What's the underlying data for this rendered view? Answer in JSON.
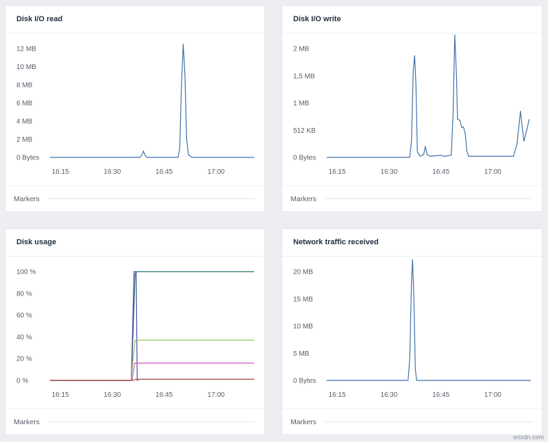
{
  "panels": [
    {
      "title": "Disk I/O read",
      "markers_label": "Markers",
      "chart_data": {
        "type": "line",
        "title": "Disk I/O read",
        "x_ticks": [
          "16:15",
          "16:30",
          "16:45",
          "17:00"
        ],
        "y_ticks": [
          "0 Bytes",
          "2 MB",
          "4 MB",
          "6 MB",
          "8 MB",
          "10 MB",
          "12 MB"
        ],
        "y_tick_values": [
          0,
          2,
          4,
          6,
          8,
          10,
          12
        ],
        "ylim": [
          0,
          12
        ],
        "x_tick_minutes": [
          15,
          30,
          45,
          60
        ],
        "xlim": [
          12,
          71
        ],
        "grid": false,
        "series": [
          {
            "color": "#3d6fa8",
            "points": [
              [
                12,
                0
              ],
              [
                38,
                0
              ],
              [
                38.5,
                0.2
              ],
              [
                39,
                0.7
              ],
              [
                39.5,
                0.2
              ],
              [
                40,
                0
              ],
              [
                49,
                0
              ],
              [
                49.5,
                1.0
              ],
              [
                50,
                8.0
              ],
              [
                50.5,
                12.5
              ],
              [
                51,
                9.0
              ],
              [
                51.5,
                2.0
              ],
              [
                52,
                0.3
              ],
              [
                53,
                0
              ],
              [
                71,
                0
              ]
            ]
          }
        ]
      }
    },
    {
      "title": "Disk I/O write",
      "markers_label": "Markers",
      "chart_data": {
        "type": "line",
        "title": "Disk I/O write",
        "x_ticks": [
          "16:15",
          "16:30",
          "16:45",
          "17:00"
        ],
        "y_ticks": [
          "0 Bytes",
          "512 KB",
          "1 MB",
          "1,5 MB",
          "2 MB"
        ],
        "y_tick_values": [
          0,
          0.5,
          1.0,
          1.5,
          2.0
        ],
        "ylim": [
          0,
          2.0
        ],
        "x_tick_minutes": [
          15,
          30,
          45,
          60
        ],
        "xlim": [
          12,
          71
        ],
        "grid": false,
        "series": [
          {
            "color": "#3d6fa8",
            "points": [
              [
                12,
                0
              ],
              [
                36,
                0
              ],
              [
                36.5,
                0.3
              ],
              [
                37,
                1.6
              ],
              [
                37.4,
                1.87
              ],
              [
                37.8,
                1.3
              ],
              [
                38.2,
                0.1
              ],
              [
                39,
                0.02
              ],
              [
                40,
                0.05
              ],
              [
                40.5,
                0.2
              ],
              [
                41,
                0.05
              ],
              [
                42,
                0.02
              ],
              [
                45,
                0.04
              ],
              [
                46,
                0.02
              ],
              [
                48,
                0.04
              ],
              [
                48.5,
                0.8
              ],
              [
                49,
                2.25
              ],
              [
                49.5,
                1.5
              ],
              [
                49.8,
                0.7
              ],
              [
                50.5,
                0.68
              ],
              [
                51,
                0.55
              ],
              [
                51.5,
                0.56
              ],
              [
                52,
                0.45
              ],
              [
                52.5,
                0.12
              ],
              [
                53,
                0.02
              ],
              [
                66,
                0.02
              ],
              [
                67,
                0.25
              ],
              [
                68,
                0.85
              ],
              [
                68.5,
                0.55
              ],
              [
                69,
                0.3
              ],
              [
                70,
                0.55
              ],
              [
                70.5,
                0.7
              ]
            ]
          }
        ]
      }
    },
    {
      "title": "Disk usage",
      "markers_label": "Markers",
      "chart_data": {
        "type": "line",
        "title": "Disk usage",
        "x_ticks": [
          "16:15",
          "16:30",
          "16:45",
          "17:00"
        ],
        "y_ticks": [
          "0 %",
          "20 %",
          "40 %",
          "60 %",
          "80 %",
          "100 %"
        ],
        "y_tick_values": [
          0,
          20,
          40,
          60,
          80,
          100
        ],
        "ylim": [
          0,
          100
        ],
        "x_tick_minutes": [
          15,
          30,
          45,
          60
        ],
        "xlim": [
          12,
          71
        ],
        "grid": false,
        "series": [
          {
            "color": "#1f6f6a",
            "points": [
              [
                12,
                0
              ],
              [
                35.5,
                0
              ],
              [
                36.6,
                98
              ],
              [
                37,
                100
              ],
              [
                71,
                100
              ]
            ]
          },
          {
            "color": "#4a48a8",
            "points": [
              [
                12,
                0
              ],
              [
                35.5,
                0
              ],
              [
                36.3,
                100
              ],
              [
                36.9,
                100
              ],
              [
                37.2,
                0
              ],
              [
                37.6,
                1
              ],
              [
                71,
                1
              ]
            ]
          },
          {
            "color": "#8fbf4f",
            "points": [
              [
                12,
                0
              ],
              [
                35.5,
                0
              ],
              [
                36,
                20
              ],
              [
                36.6,
                37
              ],
              [
                71,
                37
              ]
            ]
          },
          {
            "color": "#cc55bb",
            "points": [
              [
                12,
                0
              ],
              [
                35.7,
                0
              ],
              [
                36.5,
                16
              ],
              [
                71,
                16
              ]
            ]
          },
          {
            "color": "#b24a4a",
            "points": [
              [
                12,
                0
              ],
              [
                36,
                0
              ],
              [
                36.6,
                1
              ],
              [
                71,
                1
              ]
            ]
          }
        ]
      }
    },
    {
      "title": "Network traffic received",
      "markers_label": "Markers",
      "chart_data": {
        "type": "line",
        "title": "Network traffic received",
        "x_ticks": [
          "16:15",
          "16:30",
          "16:45",
          "17:00"
        ],
        "y_ticks": [
          "0 Bytes",
          "5 MB",
          "10 MB",
          "15 MB",
          "20 MB"
        ],
        "y_tick_values": [
          0,
          5,
          10,
          15,
          20
        ],
        "ylim": [
          0,
          20
        ],
        "x_tick_minutes": [
          15,
          30,
          45,
          60
        ],
        "xlim": [
          12,
          71
        ],
        "grid": false,
        "series": [
          {
            "color": "#3d6fa8",
            "points": [
              [
                12,
                0
              ],
              [
                35.5,
                0
              ],
              [
                36,
                4
              ],
              [
                36.5,
                18
              ],
              [
                36.8,
                22.2
              ],
              [
                37.2,
                15
              ],
              [
                37.6,
                2
              ],
              [
                38,
                0
              ],
              [
                71,
                0
              ]
            ]
          }
        ]
      }
    }
  ],
  "watermark": "wsxdn.com"
}
